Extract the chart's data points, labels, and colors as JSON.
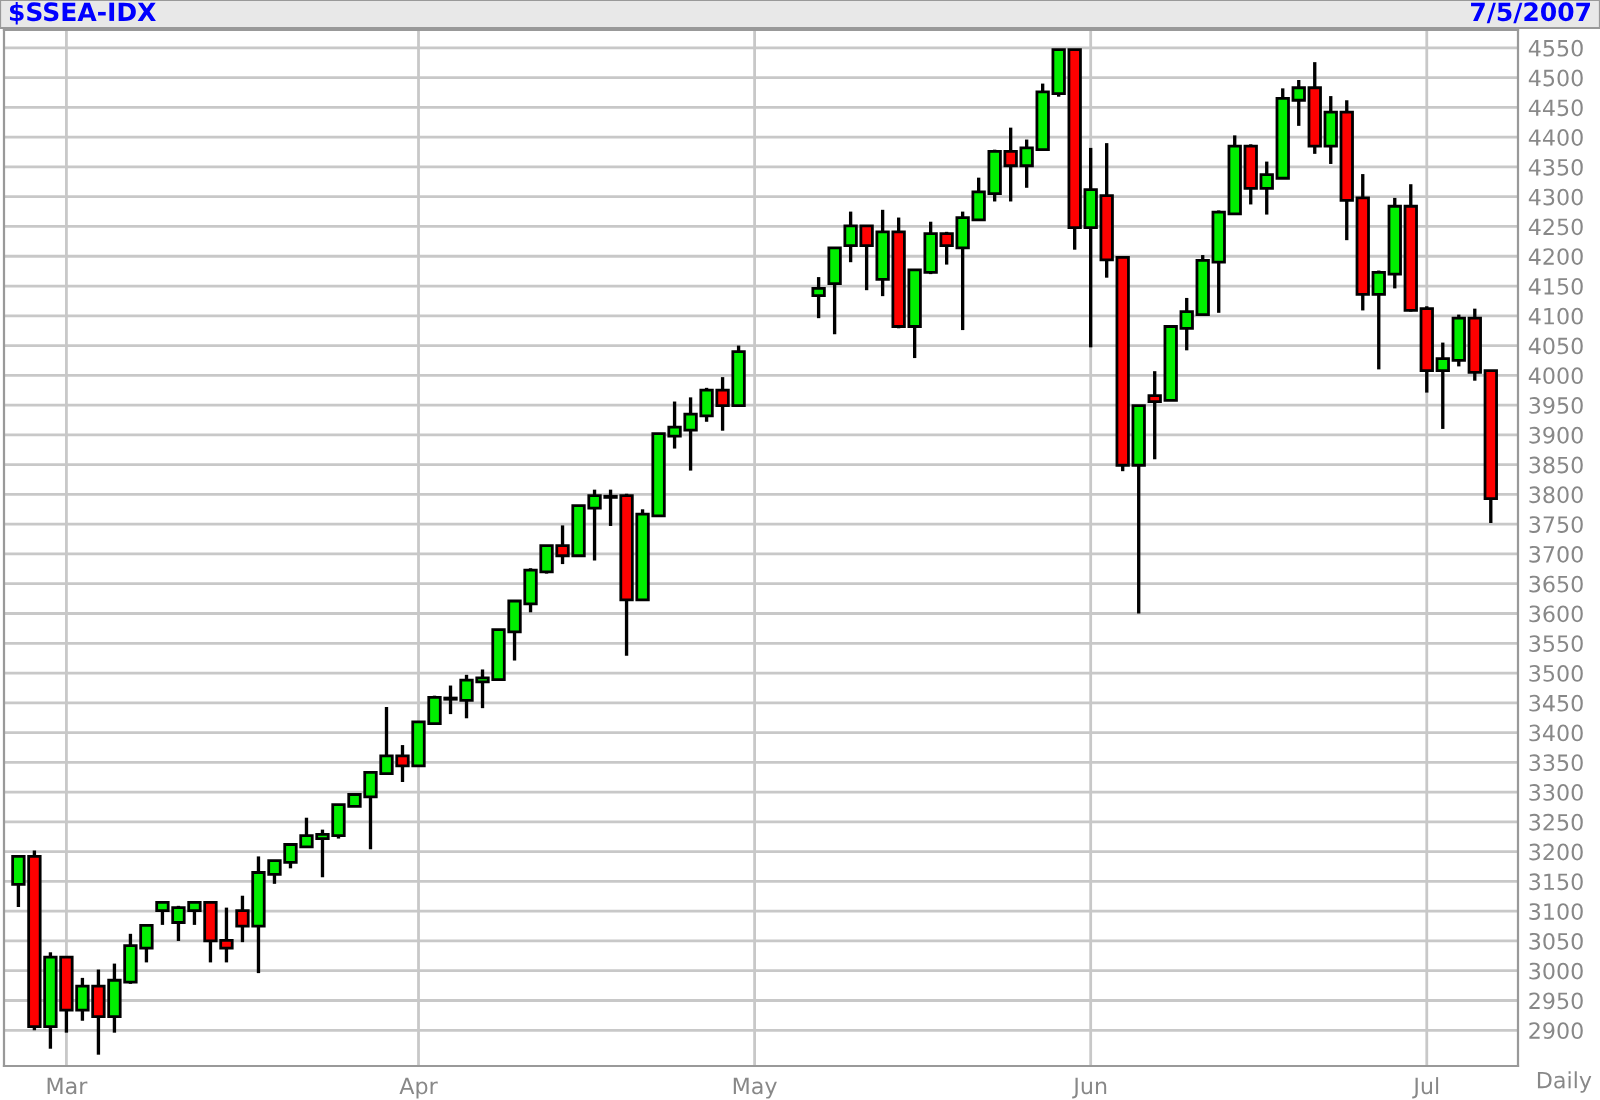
{
  "chart_data": {
    "type": "candlestick",
    "title": "$SSEA-IDX",
    "annotations": [
      "7/5/2007",
      "Daily"
    ],
    "categories": [
      null,
      null,
      null,
      "Mar",
      null,
      null,
      null,
      null,
      null,
      null,
      null,
      null,
      null,
      null,
      null,
      null,
      null,
      null,
      null,
      null,
      null,
      null,
      null,
      null,
      null,
      "Apr",
      null,
      null,
      null,
      null,
      null,
      null,
      null,
      null,
      null,
      null,
      null,
      null,
      null,
      null,
      null,
      null,
      null,
      null,
      null,
      null,
      "May",
      null,
      null,
      null,
      null,
      null,
      null,
      null,
      null,
      null,
      null,
      null,
      null,
      null,
      null,
      null,
      null,
      null,
      null,
      null,
      null,
      "Jun",
      null,
      null,
      null,
      null,
      null,
      null,
      null,
      null,
      null,
      null,
      null,
      null,
      null,
      null,
      null,
      null,
      null,
      null,
      null,
      null,
      "Jul",
      null,
      null,
      null,
      null
    ],
    "ohlc": [
      [
        3145,
        3192,
        3107,
        3192
      ],
      [
        3192,
        3202,
        2900,
        2906
      ],
      [
        2906,
        3031,
        2869,
        3023
      ],
      [
        3023,
        3023,
        2896,
        2934
      ],
      [
        2934,
        2988,
        2916,
        2974
      ],
      [
        2974,
        3002,
        2859,
        2923
      ],
      [
        2923,
        3012,
        2896,
        2984
      ],
      [
        2981,
        3062,
        2978,
        3042
      ],
      [
        3038,
        3076,
        3014,
        3076
      ],
      [
        3101,
        3115,
        3077,
        3115
      ],
      [
        3081,
        3109,
        3050,
        3106
      ],
      [
        3101,
        3115,
        3077,
        3115
      ],
      [
        3115,
        3115,
        3014,
        3050
      ],
      [
        3051,
        3106,
        3014,
        3038
      ],
      [
        3101,
        3126,
        3048,
        3075
      ],
      [
        3075,
        3192,
        2996,
        3165
      ],
      [
        3162,
        3185,
        3146,
        3185
      ],
      [
        3182,
        3212,
        3172,
        3212
      ],
      [
        3208,
        3257,
        3208,
        3227
      ],
      [
        3222,
        3237,
        3157,
        3229
      ],
      [
        3227,
        3279,
        3222,
        3279
      ],
      [
        3276,
        3296,
        3276,
        3296
      ],
      [
        3292,
        3333,
        3204,
        3333
      ],
      [
        3331,
        3443,
        3331,
        3361
      ],
      [
        3361,
        3379,
        3317,
        3344
      ],
      [
        3344,
        3418,
        3344,
        3418
      ],
      [
        3415,
        3462,
        3415,
        3459
      ],
      [
        3456,
        3479,
        3431,
        3458
      ],
      [
        3454,
        3497,
        3424,
        3488
      ],
      [
        3485,
        3506,
        3441,
        3492
      ],
      [
        3489,
        3573,
        3489,
        3573
      ],
      [
        3569,
        3621,
        3521,
        3621
      ],
      [
        3616,
        3676,
        3602,
        3673
      ],
      [
        3670,
        3714,
        3667,
        3714
      ],
      [
        3714,
        3748,
        3683,
        3697
      ],
      [
        3697,
        3781,
        3697,
        3781
      ],
      [
        3777,
        3808,
        3689,
        3798
      ],
      [
        3795,
        3808,
        3747,
        3797
      ],
      [
        3798,
        3801,
        3529,
        3623
      ],
      [
        3623,
        3775,
        3623,
        3767
      ],
      [
        3764,
        3902,
        3764,
        3902
      ],
      [
        3898,
        3956,
        3877,
        3913
      ],
      [
        3908,
        3963,
        3840,
        3935
      ],
      [
        3932,
        3979,
        3922,
        3975
      ],
      [
        3975,
        3997,
        3907,
        3949
      ],
      [
        3949,
        4050,
        3949,
        4040
      ],
      null,
      null,
      null,
      null,
      [
        4134,
        4165,
        4096,
        4146
      ],
      [
        4154,
        4214,
        4069,
        4214
      ],
      [
        4218,
        4275,
        4190,
        4251
      ],
      [
        4251,
        4251,
        4143,
        4218
      ],
      [
        4161,
        4278,
        4133,
        4241
      ],
      [
        4241,
        4265,
        4079,
        4082
      ],
      [
        4082,
        4177,
        4029,
        4177
      ],
      [
        4173,
        4258,
        4170,
        4238
      ],
      [
        4238,
        4241,
        4186,
        4218
      ],
      [
        4214,
        4275,
        4076,
        4265
      ],
      [
        4261,
        4332,
        4261,
        4308
      ],
      [
        4305,
        4379,
        4292,
        4376
      ],
      [
        4376,
        4416,
        4292,
        4352
      ],
      [
        4352,
        4396,
        4315,
        4382
      ],
      [
        4379,
        4490,
        4379,
        4476
      ],
      [
        4473,
        4547,
        4468,
        4547
      ],
      [
        4547,
        4547,
        4211,
        4248
      ],
      [
        4248,
        4382,
        4047,
        4312
      ],
      [
        4302,
        4390,
        4164,
        4194
      ],
      [
        4198,
        4198,
        3839,
        3849
      ],
      [
        3849,
        3949,
        3600,
        3949
      ],
      [
        3966,
        4007,
        3859,
        3956
      ],
      [
        3958,
        4082,
        3958,
        4082
      ],
      [
        4079,
        4130,
        4042,
        4107
      ],
      [
        4102,
        4202,
        4102,
        4193
      ],
      [
        4190,
        4277,
        4105,
        4274
      ],
      [
        4271,
        4403,
        4271,
        4385
      ],
      [
        4385,
        4388,
        4287,
        4314
      ],
      [
        4314,
        4359,
        4270,
        4337
      ],
      [
        4331,
        4482,
        4331,
        4465
      ],
      [
        4462,
        4496,
        4419,
        4483
      ],
      [
        4483,
        4526,
        4372,
        4385
      ],
      [
        4385,
        4469,
        4355,
        4442
      ],
      [
        4442,
        4462,
        4227,
        4294
      ],
      [
        4298,
        4338,
        4109,
        4136
      ],
      [
        4136,
        4176,
        4010,
        4173
      ],
      [
        4170,
        4298,
        4146,
        4284
      ],
      [
        4284,
        4321,
        4107,
        4109
      ],
      [
        4112,
        4116,
        3971,
        4008
      ],
      [
        4008,
        4055,
        3910,
        4028
      ],
      [
        4025,
        4102,
        4015,
        4096
      ],
      [
        4096,
        4112,
        3991,
        4005
      ],
      [
        4008,
        4008,
        3752,
        3793
      ]
    ],
    "colors": [
      "#00ee00",
      "#ff0000",
      "#00ee00",
      "#ff0000",
      "#00ee00",
      "#ff0000",
      "#00ee00",
      "#00ee00",
      "#00ee00",
      "#00ee00",
      "#00ee00",
      "#00ee00",
      "#ff0000",
      "#ff0000",
      "#ff0000",
      "#00ee00",
      "#00ee00",
      "#00ee00",
      "#00ee00",
      "#00ee00",
      "#00ee00",
      "#00ee00",
      "#00ee00",
      "#00ee00",
      "#ff0000",
      "#00ee00",
      "#00ee00",
      "#00ee00",
      "#00ee00",
      "#00ee00",
      "#00ee00",
      "#00ee00",
      "#00ee00",
      "#00ee00",
      "#ff0000",
      "#00ee00",
      "#00ee00",
      "#00ee00",
      "#ff0000",
      "#00ee00",
      "#00ee00",
      "#00ee00",
      "#00ee00",
      "#00ee00",
      "#ff0000",
      "#00ee00",
      null,
      null,
      null,
      null,
      "#00ee00",
      "#00ee00",
      "#00ee00",
      "#ff0000",
      "#00ee00",
      "#ff0000",
      "#00ee00",
      "#00ee00",
      "#ff0000",
      "#00ee00",
      "#00ee00",
      "#00ee00",
      "#ff0000",
      "#00ee00",
      "#00ee00",
      "#00ee00",
      "#ff0000",
      "#00ee00",
      "#ff0000",
      "#ff0000",
      "#00ee00",
      "#ff0000",
      "#00ee00",
      "#00ee00",
      "#00ee00",
      "#00ee00",
      "#00ee00",
      "#ff0000",
      "#00ee00",
      "#00ee00",
      "#00ee00",
      "#ff0000",
      "#00ee00",
      "#ff0000",
      "#ff0000",
      "#00ee00",
      "#00ee00",
      "#ff0000",
      "#ff0000",
      "#00ee00",
      "#00ee00",
      "#ff0000",
      "#ff0000"
    ],
    "ylim": [
      2840,
      4580
    ],
    "yticks": [
      2900,
      2950,
      3000,
      3050,
      3100,
      3150,
      3200,
      3250,
      3300,
      3350,
      3400,
      3450,
      3500,
      3550,
      3600,
      3650,
      3700,
      3750,
      3800,
      3850,
      3900,
      3950,
      4000,
      4050,
      4100,
      4150,
      4200,
      4250,
      4300,
      4350,
      4400,
      4450,
      4500,
      4550
    ],
    "grid": true
  }
}
